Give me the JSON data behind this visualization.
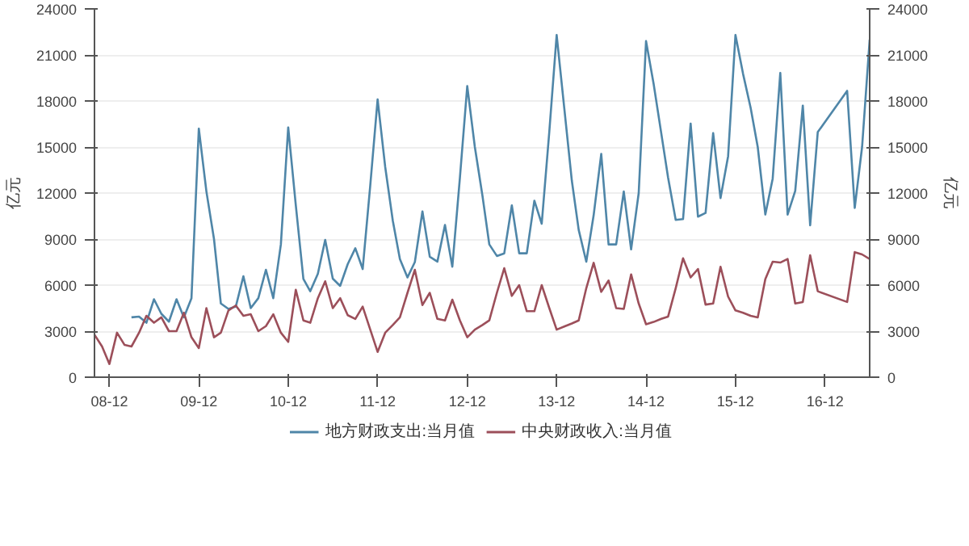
{
  "chart_data": {
    "type": "line",
    "ylabel": "亿元",
    "y2label": "亿元",
    "xlim": [
      "2008-10",
      "2017-06"
    ],
    "ylim": [
      0,
      24000
    ],
    "y2lim": [
      0,
      24000
    ],
    "xticks": [
      {
        "value": "2008-12",
        "label": "08-12"
      },
      {
        "value": "2009-12",
        "label": "09-12"
      },
      {
        "value": "2010-12",
        "label": "10-12"
      },
      {
        "value": "2011-12",
        "label": "11-12"
      },
      {
        "value": "2012-12",
        "label": "12-12"
      },
      {
        "value": "2013-12",
        "label": "13-12"
      },
      {
        "value": "2014-12",
        "label": "14-12"
      },
      {
        "value": "2015-12",
        "label": "15-12"
      },
      {
        "value": "2016-12",
        "label": "16-12"
      }
    ],
    "yticks": [
      0,
      3000,
      6000,
      9000,
      12000,
      15000,
      18000,
      21000,
      24000
    ],
    "y2ticks": [
      0,
      3000,
      6000,
      9000,
      12000,
      15000,
      18000,
      21000,
      24000
    ],
    "grid": "y",
    "legend": "bottom",
    "marker": "none",
    "line_style": "solid",
    "series": [
      {
        "name": "地方财政支出:当月值",
        "color": "#4f86a8",
        "x": [
          "2009-03",
          "2009-04",
          "2009-05",
          "2009-06",
          "2009-07",
          "2009-08",
          "2009-09",
          "2009-10",
          "2009-11",
          "2009-12",
          "2010-01",
          "2010-02",
          "2010-03",
          "2010-04",
          "2010-05",
          "2010-06",
          "2010-07",
          "2010-08",
          "2010-09",
          "2010-10",
          "2010-11",
          "2010-12",
          "2011-01",
          "2011-02",
          "2011-03",
          "2011-04",
          "2011-05",
          "2011-06",
          "2011-07",
          "2011-08",
          "2011-09",
          "2011-10",
          "2011-11",
          "2011-12",
          "2012-01",
          "2012-02",
          "2012-03",
          "2012-04",
          "2012-05",
          "2012-06",
          "2012-07",
          "2012-08",
          "2012-09",
          "2012-10",
          "2012-11",
          "2012-12",
          "2013-01",
          "2013-02",
          "2013-03",
          "2013-04",
          "2013-05",
          "2013-06",
          "2013-07",
          "2013-08",
          "2013-09",
          "2013-10",
          "2013-11",
          "2013-12",
          "2014-01",
          "2014-02",
          "2014-03",
          "2014-04",
          "2014-05",
          "2014-06",
          "2014-07",
          "2014-08",
          "2014-09",
          "2014-10",
          "2014-11",
          "2014-12",
          "2015-01",
          "2015-02",
          "2015-03",
          "2015-04",
          "2015-05",
          "2015-06",
          "2015-07",
          "2015-08",
          "2015-09",
          "2015-10",
          "2015-11",
          "2015-12",
          "2016-01",
          "2016-02",
          "2016-03",
          "2016-04",
          "2016-05",
          "2016-06",
          "2016-07",
          "2016-08",
          "2016-09",
          "2016-10",
          "2016-11",
          "2017-03",
          "2017-04",
          "2017-05",
          "2017-06"
        ],
        "values": [
          3900,
          3950,
          3550,
          5080,
          4130,
          3620,
          5080,
          3900,
          5150,
          16200,
          12100,
          9000,
          4800,
          4450,
          4600,
          6580,
          4500,
          5150,
          7000,
          5150,
          8650,
          16280,
          11200,
          6400,
          5600,
          6740,
          8950,
          6420,
          5950,
          7370,
          8400,
          7050,
          12500,
          18100,
          13700,
          10200,
          7700,
          6500,
          7500,
          10800,
          7850,
          7530,
          9920,
          7200,
          13000,
          18970,
          15000,
          11830,
          8650,
          7900,
          8070,
          11200,
          8070,
          8070,
          11500,
          10000,
          16000,
          22300,
          17550,
          12800,
          9600,
          7530,
          10550,
          14550,
          8650,
          8650,
          12100,
          8330,
          12000,
          21900,
          19100,
          15900,
          13000,
          10250,
          10300,
          16530,
          10460,
          10700,
          15900,
          11670,
          14400,
          22300,
          19770,
          17550,
          15000,
          10600,
          12940,
          19830,
          10600,
          12140,
          17700,
          9900,
          15970,
          18660,
          11030,
          15000,
          22000
        ]
      },
      {
        "name": "中央财政收入:当月值",
        "color": "#9c4f5a",
        "x": [
          "2008-10",
          "2008-11",
          "2008-12",
          "2009-01",
          "2009-02",
          "2009-03",
          "2009-04",
          "2009-05",
          "2009-06",
          "2009-07",
          "2009-08",
          "2009-09",
          "2009-10",
          "2009-11",
          "2009-12",
          "2010-01",
          "2010-02",
          "2010-03",
          "2010-04",
          "2010-05",
          "2010-06",
          "2010-07",
          "2010-08",
          "2010-09",
          "2010-10",
          "2010-11",
          "2010-12",
          "2011-01",
          "2011-02",
          "2011-03",
          "2011-04",
          "2011-05",
          "2011-06",
          "2011-07",
          "2011-08",
          "2011-09",
          "2011-10",
          "2011-11",
          "2011-12",
          "2012-01",
          "2012-02",
          "2012-03",
          "2012-04",
          "2012-05",
          "2012-06",
          "2012-07",
          "2012-08",
          "2012-09",
          "2012-10",
          "2012-11",
          "2012-12",
          "2013-01",
          "2013-02",
          "2013-03",
          "2013-04",
          "2013-05",
          "2013-06",
          "2013-07",
          "2013-08",
          "2013-09",
          "2013-10",
          "2013-11",
          "2013-12",
          "2014-01",
          "2014-02",
          "2014-03",
          "2014-04",
          "2014-05",
          "2014-06",
          "2014-07",
          "2014-08",
          "2014-09",
          "2014-10",
          "2014-11",
          "2014-12",
          "2015-01",
          "2015-02",
          "2015-03",
          "2015-04",
          "2015-05",
          "2015-06",
          "2015-07",
          "2015-08",
          "2015-09",
          "2015-10",
          "2015-11",
          "2015-12",
          "2016-01",
          "2016-02",
          "2016-03",
          "2016-04",
          "2016-05",
          "2016-06",
          "2016-07",
          "2016-08",
          "2016-09",
          "2016-10",
          "2016-11",
          "2017-03",
          "2017-04",
          "2017-05",
          "2017-06"
        ],
        "values": [
          2770,
          2000,
          860,
          2900,
          2100,
          2000,
          2900,
          4000,
          3550,
          3900,
          3000,
          3000,
          4200,
          2600,
          1900,
          4500,
          2600,
          2900,
          4350,
          4670,
          4000,
          4100,
          3000,
          3330,
          4100,
          2900,
          2300,
          5700,
          3700,
          3550,
          5150,
          6250,
          4500,
          5150,
          4040,
          3800,
          4600,
          3100,
          1650,
          2900,
          3400,
          3900,
          5500,
          7000,
          4700,
          5500,
          3800,
          3700,
          5050,
          3700,
          2600,
          3100,
          3400,
          3700,
          5500,
          7100,
          5300,
          6000,
          4300,
          4300,
          6000,
          4500,
          3100,
          3300,
          3500,
          3700,
          5800,
          7450,
          5560,
          6300,
          4500,
          4450,
          6700,
          4800,
          3450,
          3600,
          3800,
          3950,
          5800,
          7750,
          6500,
          7050,
          4730,
          4800,
          7200,
          5250,
          4350,
          4200,
          4000,
          3900,
          6400,
          7530,
          7470,
          7700,
          4800,
          4900,
          7950,
          5600,
          4900,
          8150,
          8000,
          7700
        ]
      }
    ]
  }
}
